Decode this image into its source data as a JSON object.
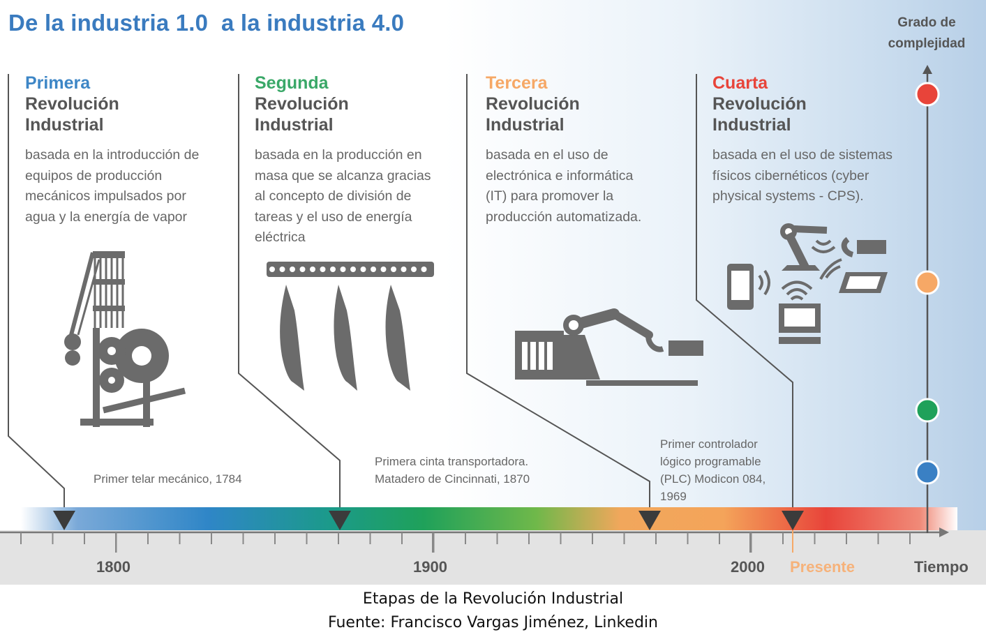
{
  "title": "De la industria 1.0  a la industria 4.0",
  "complexity_label_line1": "Grado de",
  "complexity_label_line2": "complejidad",
  "revolutions": [
    {
      "ordinal": "Primera",
      "color": "#3d86c6",
      "name_line1": "Revolución",
      "name_line2": "Industrial",
      "description": [
        "basada en la introducción de",
        "equipos de producción",
        "mecánicos impulsados por",
        "agua y la energía de vapor"
      ],
      "milestone": [
        "Primer telar mecánico, 1784"
      ],
      "icon": "mechanical-loom-icon"
    },
    {
      "ordinal": "Segunda",
      "color": "#3aa868",
      "name_line1": "Revolución",
      "name_line2": "Industrial",
      "description": [
        "basada en la producción en",
        "masa que se alcanza gracias",
        "al concepto de  división de",
        "tareas y el uso de energía",
        "eléctrica"
      ],
      "milestone": [
        "Primera cinta transportadora.",
        "Matadero de Cincinnati, 1870"
      ],
      "icon": "conveyor-belt-icon"
    },
    {
      "ordinal": "Tercera",
      "color": "#f6a866",
      "name_line1": "Revolución",
      "name_line2": "Industrial",
      "description": [
        "basada en el uso de",
        "electrónica e informática",
        "(IT) para promover la",
        "producción automatizada."
      ],
      "milestone": [
        "Primer controlador",
        "lógico programable",
        "(PLC) Modicon 084,",
        "1969"
      ],
      "icon": "robotic-arm-icon"
    },
    {
      "ordinal": "Cuarta",
      "color": "#e8443a",
      "name_line1": "Revolución",
      "name_line2": "Industrial",
      "description": [
        "basada en el uso de sistemas",
        "físicos cibernéticos (cyber",
        "physical systems - CPS)."
      ],
      "milestone": [],
      "icon": "cyber-physical-systems-icon"
    }
  ],
  "axis": {
    "labels": [
      "1800",
      "1900",
      "2000"
    ],
    "present_label": "Presente",
    "time_label": "Tiempo"
  },
  "complexity_dots": [
    "#e8443a",
    "#f6a866",
    "#1fa15a",
    "#3a80c4"
  ],
  "caption_line1": "Etapas de la Revolución Industrial",
  "caption_line2": "Fuente: Francisco Vargas Jiménez, Linkedin"
}
